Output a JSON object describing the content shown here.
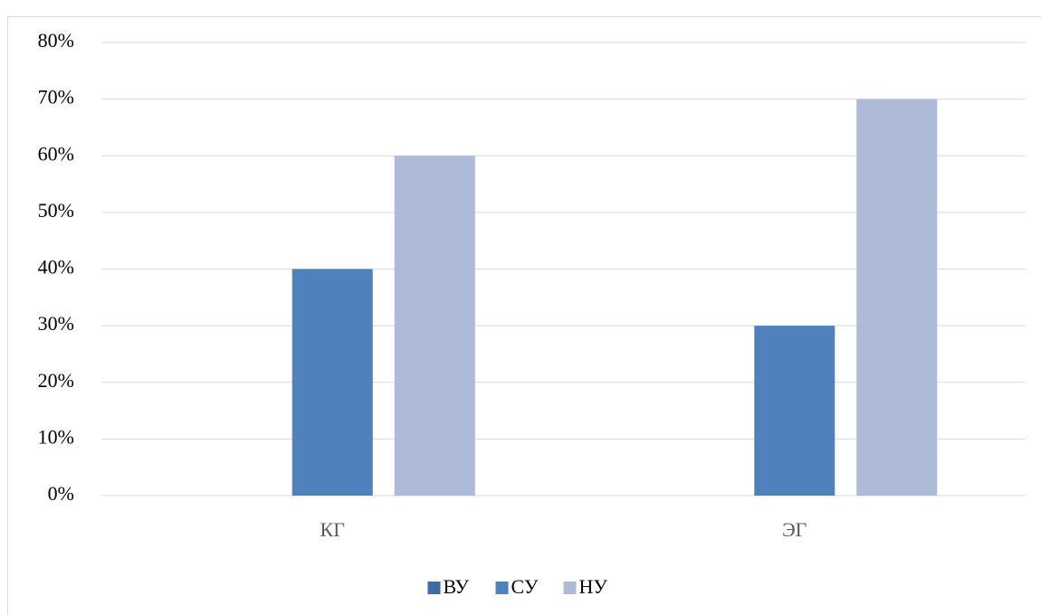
{
  "chart_data": {
    "type": "bar",
    "categories": [
      "КГ",
      "ЭГ"
    ],
    "series": [
      {
        "name": "ВУ",
        "color": "#3f6aa5",
        "values": [
          0,
          0
        ]
      },
      {
        "name": "СУ",
        "color": "#4f81bd",
        "values": [
          40,
          30
        ]
      },
      {
        "name": "НУ",
        "color": "#adbad8",
        "values": [
          60,
          70
        ]
      }
    ],
    "ylim": [
      0,
      80
    ],
    "yticks": [
      {
        "value": 0,
        "label": "0%"
      },
      {
        "value": 10,
        "label": "10%"
      },
      {
        "value": 20,
        "label": "20%"
      },
      {
        "value": 30,
        "label": "30%"
      },
      {
        "value": 40,
        "label": "40%"
      },
      {
        "value": 50,
        "label": "50%"
      },
      {
        "value": 60,
        "label": "60%"
      },
      {
        "value": 70,
        "label": "70%"
      },
      {
        "value": 80,
        "label": "80%"
      }
    ],
    "grid": true,
    "legend": "bottom"
  }
}
